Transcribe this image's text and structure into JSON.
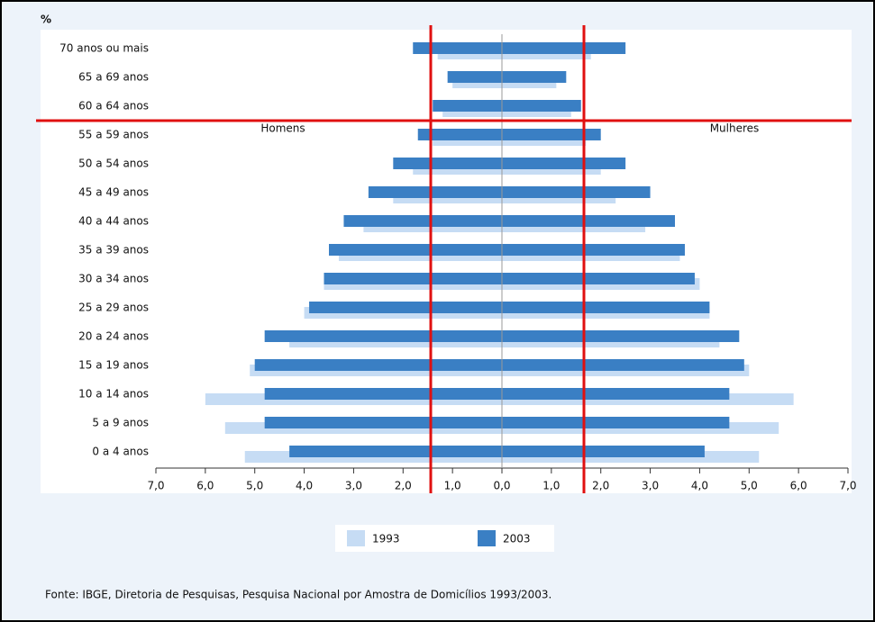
{
  "chart_data": {
    "type": "pyramid",
    "unit_label": "%",
    "left_label": "Homens",
    "right_label": "Mulheres",
    "categories": [
      "70 anos ou mais",
      "65 a 69 anos",
      "60 a 64 anos",
      "55 a 59 anos",
      "50 a 54 anos",
      "45 a 49 anos",
      "40 a 44 anos",
      "35 a 39 anos",
      "30 a 34 anos",
      "25 a 29 anos",
      "20 a 24 anos",
      "15 a 19 anos",
      "10 a 14 anos",
      "5 a 9 anos",
      "0 a 4 anos"
    ],
    "series": [
      {
        "name": "1993",
        "color": "#c6dcf4",
        "men": [
          1.3,
          1.0,
          1.2,
          1.4,
          1.8,
          2.2,
          2.8,
          3.3,
          3.6,
          4.0,
          4.3,
          5.1,
          6.0,
          5.6,
          5.2
        ],
        "women": [
          1.8,
          1.1,
          1.4,
          1.7,
          2.0,
          2.3,
          2.9,
          3.6,
          4.0,
          4.2,
          4.4,
          5.0,
          5.9,
          5.6,
          5.2
        ]
      },
      {
        "name": "2003",
        "color": "#3a7fc4",
        "men": [
          1.8,
          1.1,
          1.4,
          1.7,
          2.2,
          2.7,
          3.2,
          3.5,
          3.6,
          3.9,
          4.8,
          5.0,
          4.8,
          4.8,
          4.3
        ],
        "women": [
          2.5,
          1.3,
          1.6,
          2.0,
          2.5,
          3.0,
          3.5,
          3.7,
          3.9,
          4.2,
          4.8,
          4.9,
          4.6,
          4.6,
          4.1
        ]
      }
    ],
    "xlim": [
      0,
      7
    ],
    "xticks": [
      {
        "value": 0,
        "label": "0,0"
      },
      {
        "value": 1,
        "label": "1,0"
      },
      {
        "value": 2,
        "label": "2,0"
      },
      {
        "value": 3,
        "label": "3,0"
      },
      {
        "value": 4,
        "label": "4,0"
      },
      {
        "value": 5,
        "label": "5,0"
      },
      {
        "value": 6,
        "label": "6,0"
      },
      {
        "value": 7,
        "label": "7,0"
      }
    ],
    "source": "Fonte: IBGE, Diretoria de Pesquisas, Pesquisa Nacional por Amostra de Domicílios 1993/2003."
  }
}
